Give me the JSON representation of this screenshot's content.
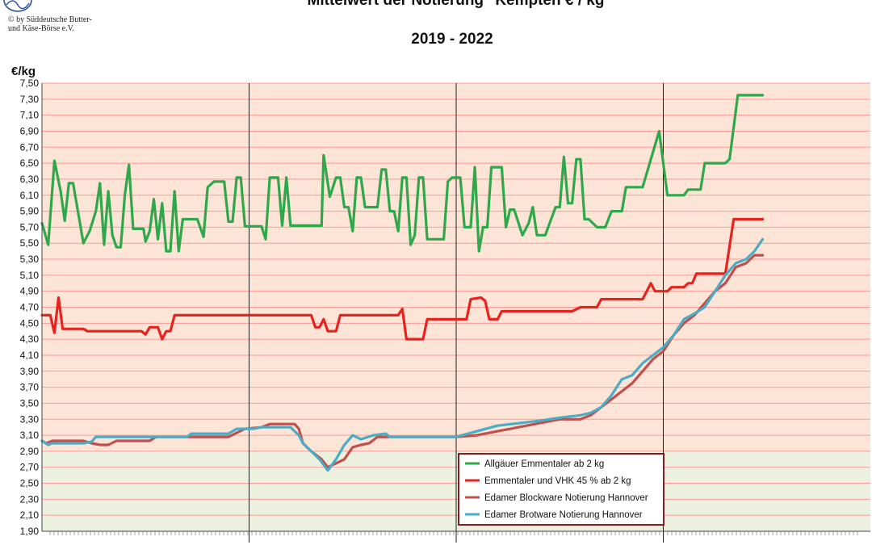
{
  "header": {
    "title": "\"Mittelwert der Notierung\" Kempten  € / kg",
    "subtitle": "2019 - 2022",
    "copyright_line1": "© by Süddeutsche Butter-",
    "copyright_line2": "und Käse-Börse e.V."
  },
  "colors": {
    "plot_upper": "#fce4d6",
    "plot_lower": "#ebf1de",
    "grid": "#ff9999",
    "emmentaler_allgaeu": "#2ea84a",
    "emmentaler_vhk": "#e8231e",
    "edamer_block": "#c0504d",
    "edamer_brot": "#4bacc6",
    "legend_border": "#7f1f1f"
  },
  "chart_data": {
    "type": "line",
    "title": "\"Mittelwert der Notierung\" Kempten  € / kg",
    "subtitle": "2019 - 2022",
    "ylabel": "€/kg",
    "xlabel": "",
    "ylim": [
      1.9,
      7.5
    ],
    "y_ticks": [
      "1,90",
      "2,10",
      "2,30",
      "2,50",
      "2,70",
      "2,90",
      "3,10",
      "3,30",
      "3,50",
      "3,70",
      "3,90",
      "4,10",
      "4,30",
      "4,50",
      "4,70",
      "4,90",
      "5,10",
      "5,30",
      "5,50",
      "5,70",
      "5,90",
      "6,10",
      "6,30",
      "6,50",
      "6,70",
      "6,90",
      "7,10",
      "7,30",
      "7,50"
    ],
    "xlim": [
      2019,
      2023
    ],
    "year_boundaries": [
      2020,
      2021,
      2022
    ],
    "grid": true,
    "legend_position": "bottom-right",
    "series": [
      {
        "name": "Allgäuer Emmentaler ab 2 kg",
        "points": [
          [
            2019.0,
            5.75
          ],
          [
            2019.03,
            5.48
          ],
          [
            2019.06,
            6.53
          ],
          [
            2019.09,
            6.15
          ],
          [
            2019.11,
            5.78
          ],
          [
            2019.13,
            6.25
          ],
          [
            2019.15,
            6.25
          ],
          [
            2019.18,
            5.8
          ],
          [
            2019.2,
            5.5
          ],
          [
            2019.23,
            5.65
          ],
          [
            2019.26,
            5.9
          ],
          [
            2019.28,
            6.25
          ],
          [
            2019.3,
            5.48
          ],
          [
            2019.32,
            6.15
          ],
          [
            2019.34,
            5.6
          ],
          [
            2019.36,
            5.45
          ],
          [
            2019.38,
            5.45
          ],
          [
            2019.4,
            6.1
          ],
          [
            2019.42,
            6.48
          ],
          [
            2019.44,
            5.68
          ],
          [
            2019.47,
            5.68
          ],
          [
            2019.49,
            5.68
          ],
          [
            2019.5,
            5.52
          ],
          [
            2019.52,
            5.65
          ],
          [
            2019.54,
            6.05
          ],
          [
            2019.56,
            5.55
          ],
          [
            2019.58,
            6.0
          ],
          [
            2019.6,
            5.4
          ],
          [
            2019.62,
            5.4
          ],
          [
            2019.64,
            6.15
          ],
          [
            2019.66,
            5.4
          ],
          [
            2019.68,
            5.8
          ],
          [
            2019.72,
            5.8
          ],
          [
            2019.75,
            5.8
          ],
          [
            2019.78,
            5.58
          ],
          [
            2019.8,
            6.2
          ],
          [
            2019.83,
            6.27
          ],
          [
            2019.88,
            6.27
          ],
          [
            2019.9,
            5.77
          ],
          [
            2019.92,
            5.77
          ],
          [
            2019.94,
            6.32
          ],
          [
            2019.96,
            6.32
          ],
          [
            2019.98,
            5.71
          ],
          [
            2020.06,
            5.71
          ],
          [
            2020.08,
            5.55
          ],
          [
            2020.1,
            6.32
          ],
          [
            2020.14,
            6.32
          ],
          [
            2020.16,
            5.72
          ],
          [
            2020.18,
            6.32
          ],
          [
            2020.2,
            5.72
          ],
          [
            2020.35,
            5.72
          ],
          [
            2020.36,
            6.6
          ],
          [
            2020.39,
            6.08
          ],
          [
            2020.42,
            6.32
          ],
          [
            2020.44,
            6.32
          ],
          [
            2020.46,
            5.95
          ],
          [
            2020.48,
            5.95
          ],
          [
            2020.5,
            5.65
          ],
          [
            2020.52,
            6.32
          ],
          [
            2020.54,
            6.32
          ],
          [
            2020.56,
            5.95
          ],
          [
            2020.62,
            5.95
          ],
          [
            2020.64,
            6.42
          ],
          [
            2020.66,
            6.42
          ],
          [
            2020.68,
            5.9
          ],
          [
            2020.7,
            5.9
          ],
          [
            2020.72,
            5.65
          ],
          [
            2020.74,
            6.32
          ],
          [
            2020.76,
            6.32
          ],
          [
            2020.78,
            5.48
          ],
          [
            2020.8,
            5.6
          ],
          [
            2020.82,
            6.32
          ],
          [
            2020.84,
            6.32
          ],
          [
            2020.86,
            5.55
          ],
          [
            2020.94,
            5.55
          ],
          [
            2020.96,
            6.27
          ],
          [
            2020.98,
            6.32
          ],
          [
            2021.02,
            6.32
          ],
          [
            2021.04,
            5.7
          ],
          [
            2021.07,
            5.7
          ],
          [
            2021.09,
            6.45
          ],
          [
            2021.11,
            5.4
          ],
          [
            2021.13,
            5.7
          ],
          [
            2021.15,
            5.7
          ],
          [
            2021.17,
            6.45
          ],
          [
            2021.22,
            6.45
          ],
          [
            2021.24,
            5.7
          ],
          [
            2021.26,
            5.92
          ],
          [
            2021.28,
            5.92
          ],
          [
            2021.32,
            5.6
          ],
          [
            2021.35,
            5.75
          ],
          [
            2021.37,
            5.95
          ],
          [
            2021.39,
            5.6
          ],
          [
            2021.43,
            5.6
          ],
          [
            2021.48,
            5.95
          ],
          [
            2021.5,
            5.95
          ],
          [
            2021.52,
            6.58
          ],
          [
            2021.54,
            6.0
          ],
          [
            2021.56,
            6.0
          ],
          [
            2021.58,
            6.55
          ],
          [
            2021.6,
            6.55
          ],
          [
            2021.62,
            5.8
          ],
          [
            2021.64,
            5.8
          ],
          [
            2021.68,
            5.7
          ],
          [
            2021.72,
            5.7
          ],
          [
            2021.75,
            5.9
          ],
          [
            2021.8,
            5.9
          ],
          [
            2021.82,
            6.2
          ],
          [
            2021.9,
            6.2
          ],
          [
            2021.98,
            6.9
          ],
          [
            2022.02,
            6.1
          ],
          [
            2022.1,
            6.1
          ],
          [
            2022.12,
            6.17
          ],
          [
            2022.18,
            6.17
          ],
          [
            2022.2,
            6.5
          ],
          [
            2022.3,
            6.5
          ],
          [
            2022.32,
            6.55
          ],
          [
            2022.36,
            7.35
          ],
          [
            2022.48,
            7.35
          ]
        ]
      },
      {
        "name": "Emmentaler und VHK 45 % ab 2 kg",
        "points": [
          [
            2019.0,
            4.6
          ],
          [
            2019.04,
            4.6
          ],
          [
            2019.06,
            4.38
          ],
          [
            2019.08,
            4.82
          ],
          [
            2019.1,
            4.43
          ],
          [
            2019.2,
            4.43
          ],
          [
            2019.22,
            4.4
          ],
          [
            2019.45,
            4.4
          ],
          [
            2019.48,
            4.4
          ],
          [
            2019.5,
            4.36
          ],
          [
            2019.52,
            4.45
          ],
          [
            2019.56,
            4.45
          ],
          [
            2019.58,
            4.3
          ],
          [
            2019.6,
            4.4
          ],
          [
            2019.62,
            4.4
          ],
          [
            2019.64,
            4.6
          ],
          [
            2020.0,
            4.6
          ],
          [
            2020.3,
            4.6
          ],
          [
            2020.32,
            4.45
          ],
          [
            2020.34,
            4.45
          ],
          [
            2020.36,
            4.55
          ],
          [
            2020.38,
            4.4
          ],
          [
            2020.42,
            4.4
          ],
          [
            2020.44,
            4.6
          ],
          [
            2020.72,
            4.6
          ],
          [
            2020.74,
            4.68
          ],
          [
            2020.76,
            4.3
          ],
          [
            2020.84,
            4.3
          ],
          [
            2020.86,
            4.55
          ],
          [
            2021.05,
            4.55
          ],
          [
            2021.07,
            4.8
          ],
          [
            2021.12,
            4.82
          ],
          [
            2021.14,
            4.78
          ],
          [
            2021.16,
            4.55
          ],
          [
            2021.2,
            4.55
          ],
          [
            2021.22,
            4.65
          ],
          [
            2021.56,
            4.65
          ],
          [
            2021.6,
            4.7
          ],
          [
            2021.68,
            4.7
          ],
          [
            2021.7,
            4.8
          ],
          [
            2021.9,
            4.8
          ],
          [
            2021.94,
            5.0
          ],
          [
            2021.96,
            4.9
          ],
          [
            2022.02,
            4.9
          ],
          [
            2022.04,
            4.95
          ],
          [
            2022.1,
            4.95
          ],
          [
            2022.12,
            5.0
          ],
          [
            2022.14,
            5.0
          ],
          [
            2022.16,
            5.12
          ],
          [
            2022.3,
            5.12
          ],
          [
            2022.34,
            5.8
          ],
          [
            2022.48,
            5.8
          ]
        ]
      },
      {
        "name": "Edamer Blockware Notierung Hannover",
        "points": [
          [
            2019.0,
            3.03
          ],
          [
            2019.02,
            3.0
          ],
          [
            2019.05,
            3.03
          ],
          [
            2019.2,
            3.03
          ],
          [
            2019.24,
            3.0
          ],
          [
            2019.28,
            2.98
          ],
          [
            2019.32,
            2.98
          ],
          [
            2019.36,
            3.03
          ],
          [
            2019.52,
            3.03
          ],
          [
            2019.55,
            3.08
          ],
          [
            2019.9,
            3.08
          ],
          [
            2019.98,
            3.18
          ],
          [
            2020.06,
            3.2
          ],
          [
            2020.1,
            3.24
          ],
          [
            2020.22,
            3.24
          ],
          [
            2020.24,
            3.18
          ],
          [
            2020.26,
            3.0
          ],
          [
            2020.3,
            2.9
          ],
          [
            2020.35,
            2.8
          ],
          [
            2020.38,
            2.7
          ],
          [
            2020.42,
            2.75
          ],
          [
            2020.46,
            2.8
          ],
          [
            2020.5,
            2.95
          ],
          [
            2020.54,
            2.98
          ],
          [
            2020.58,
            3.0
          ],
          [
            2020.62,
            3.08
          ],
          [
            2020.72,
            3.08
          ],
          [
            2021.0,
            3.08
          ],
          [
            2021.1,
            3.1
          ],
          [
            2021.2,
            3.15
          ],
          [
            2021.3,
            3.2
          ],
          [
            2021.4,
            3.25
          ],
          [
            2021.5,
            3.3
          ],
          [
            2021.6,
            3.3
          ],
          [
            2021.65,
            3.35
          ],
          [
            2021.7,
            3.45
          ],
          [
            2021.75,
            3.55
          ],
          [
            2021.8,
            3.65
          ],
          [
            2021.85,
            3.75
          ],
          [
            2021.9,
            3.9
          ],
          [
            2021.95,
            4.05
          ],
          [
            2022.0,
            4.15
          ],
          [
            2022.05,
            4.35
          ],
          [
            2022.1,
            4.5
          ],
          [
            2022.15,
            4.6
          ],
          [
            2022.2,
            4.75
          ],
          [
            2022.25,
            4.9
          ],
          [
            2022.3,
            5.0
          ],
          [
            2022.35,
            5.2
          ],
          [
            2022.4,
            5.25
          ],
          [
            2022.44,
            5.35
          ],
          [
            2022.48,
            5.35
          ]
        ]
      },
      {
        "name": "Edamer Brotware Notierung Hannover",
        "points": [
          [
            2019.0,
            3.03
          ],
          [
            2019.03,
            2.98
          ],
          [
            2019.05,
            3.0
          ],
          [
            2019.2,
            3.0
          ],
          [
            2019.24,
            3.02
          ],
          [
            2019.26,
            3.08
          ],
          [
            2019.7,
            3.08
          ],
          [
            2019.72,
            3.12
          ],
          [
            2019.9,
            3.12
          ],
          [
            2019.94,
            3.18
          ],
          [
            2020.02,
            3.18
          ],
          [
            2020.06,
            3.2
          ],
          [
            2020.2,
            3.2
          ],
          [
            2020.24,
            3.1
          ],
          [
            2020.26,
            3.0
          ],
          [
            2020.3,
            2.9
          ],
          [
            2020.34,
            2.8
          ],
          [
            2020.38,
            2.66
          ],
          [
            2020.42,
            2.8
          ],
          [
            2020.46,
            2.98
          ],
          [
            2020.5,
            3.1
          ],
          [
            2020.54,
            3.05
          ],
          [
            2020.6,
            3.1
          ],
          [
            2020.66,
            3.12
          ],
          [
            2020.68,
            3.08
          ],
          [
            2021.0,
            3.08
          ],
          [
            2021.1,
            3.15
          ],
          [
            2021.2,
            3.22
          ],
          [
            2021.3,
            3.25
          ],
          [
            2021.4,
            3.28
          ],
          [
            2021.5,
            3.32
          ],
          [
            2021.6,
            3.35
          ],
          [
            2021.65,
            3.38
          ],
          [
            2021.7,
            3.45
          ],
          [
            2021.75,
            3.6
          ],
          [
            2021.8,
            3.8
          ],
          [
            2021.85,
            3.85
          ],
          [
            2021.9,
            4.0
          ],
          [
            2021.95,
            4.1
          ],
          [
            2022.0,
            4.2
          ],
          [
            2022.05,
            4.35
          ],
          [
            2022.1,
            4.55
          ],
          [
            2022.15,
            4.62
          ],
          [
            2022.2,
            4.7
          ],
          [
            2022.25,
            4.9
          ],
          [
            2022.3,
            5.1
          ],
          [
            2022.35,
            5.25
          ],
          [
            2022.4,
            5.3
          ],
          [
            2022.44,
            5.4
          ],
          [
            2022.48,
            5.55
          ]
        ]
      }
    ]
  }
}
